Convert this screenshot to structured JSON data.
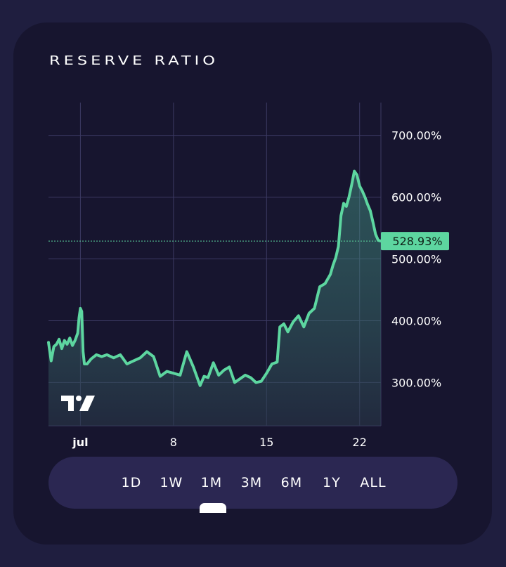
{
  "title": "RESERVE RATIO",
  "current_label": "528.93%",
  "range_options": [
    "1D",
    "1W",
    "1M",
    "3M",
    "6M",
    "1Y",
    "ALL"
  ],
  "selected_range": "1M",
  "colors": {
    "line": "#5dd6a0",
    "price_tag": "#5dd6a0",
    "grid": "#3c3a63",
    "background": "#17152f"
  },
  "chart_data": {
    "type": "area",
    "title": "RESERVE RATIO",
    "xlabel": "",
    "ylabel": "",
    "x_tick_labels": [
      "jul",
      "8",
      "15",
      "22"
    ],
    "x_tick_values": [
      1,
      8,
      15,
      22
    ],
    "y_tick_labels": [
      "300.00%",
      "400.00%",
      "500.00%",
      "600.00%",
      "700.00%"
    ],
    "y_tick_values": [
      300,
      400,
      500,
      600,
      700
    ],
    "xlim": [
      -1.4,
      23.6
    ],
    "ylim": [
      230,
      753
    ],
    "grid": true,
    "last_value": 528.93,
    "series": [
      {
        "x": [
          -1.4,
          -1.2,
          -1.0,
          -0.8,
          -0.6,
          -0.4,
          -0.2,
          0.0,
          0.2,
          0.4,
          0.6,
          0.8,
          0.9,
          1.0,
          1.1,
          1.2,
          1.3,
          1.5,
          1.8,
          2.2,
          2.6,
          3.0,
          3.5,
          4.0,
          4.5,
          5.0,
          5.5,
          6.0,
          6.5,
          7.0,
          7.5,
          8.0,
          8.5,
          9.0,
          9.5,
          10.0,
          10.3,
          10.6,
          11.0,
          11.4,
          11.8,
          12.2,
          12.6,
          13.0,
          13.4,
          13.8,
          14.2,
          14.6,
          15.0,
          15.4,
          15.8,
          16.0,
          16.3,
          16.6,
          17.0,
          17.4,
          17.8,
          18.2,
          18.6,
          19.0,
          19.4,
          19.8,
          20.0,
          20.2,
          20.4,
          20.6,
          20.8,
          21.0,
          21.2,
          21.4,
          21.6,
          21.8,
          22.0,
          22.2,
          22.4,
          22.6,
          22.8,
          23.0,
          23.2,
          23.4,
          23.6
        ],
        "values": [
          365,
          335,
          358,
          362,
          370,
          355,
          368,
          362,
          372,
          360,
          368,
          380,
          405,
          420,
          415,
          350,
          330,
          330,
          338,
          345,
          342,
          345,
          340,
          345,
          330,
          335,
          340,
          350,
          342,
          310,
          318,
          315,
          312,
          350,
          325,
          295,
          310,
          308,
          332,
          312,
          320,
          325,
          300,
          306,
          312,
          308,
          300,
          302,
          315,
          330,
          333,
          390,
          395,
          382,
          398,
          408,
          390,
          412,
          420,
          455,
          460,
          475,
          490,
          502,
          520,
          570,
          590,
          585,
          600,
          620,
          642,
          636,
          618,
          610,
          600,
          588,
          578,
          560,
          540,
          530,
          528.93
        ]
      }
    ]
  }
}
